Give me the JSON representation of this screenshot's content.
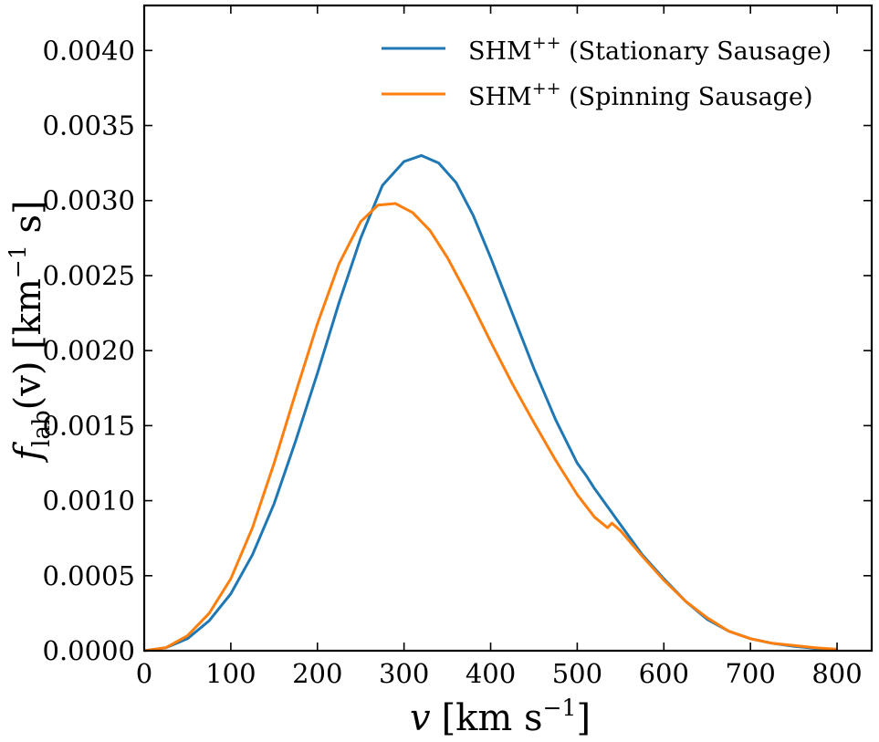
{
  "chart_data": {
    "type": "line",
    "xlabel_main": "v",
    "xlabel_units": "[km s",
    "xlabel_exp": "−1",
    "xlabel_close": "]",
    "ylabel_f": "f",
    "ylabel_sub": "lab",
    "ylabel_arg": "(v) [km",
    "ylabel_exp": "−1",
    "ylabel_close": " s]",
    "xlim": [
      0,
      840
    ],
    "ylim": [
      0,
      0.0043
    ],
    "xticks": [
      0,
      100,
      200,
      300,
      400,
      500,
      600,
      700,
      800
    ],
    "yticks": [
      0.0,
      0.0005,
      0.001,
      0.0015,
      0.002,
      0.0025,
      0.003,
      0.0035,
      0.004
    ],
    "ytick_labels": [
      "0.0000",
      "0.0005",
      "0.0010",
      "0.0015",
      "0.0020",
      "0.0025",
      "0.0030",
      "0.0035",
      "0.0040"
    ],
    "legend_position": "top-right",
    "series": [
      {
        "name": "SHM",
        "name_sup": "++",
        "name_rest": " (Stationary Sausage)",
        "color": "#1f77b4",
        "x": [
          0,
          25,
          50,
          75,
          100,
          125,
          150,
          175,
          200,
          225,
          250,
          275,
          300,
          320,
          340,
          360,
          380,
          400,
          425,
          450,
          475,
          500,
          510,
          520,
          550,
          575,
          600,
          625,
          650,
          675,
          700,
          725,
          750,
          775,
          800
        ],
        "y": [
          0,
          2e-05,
          8e-05,
          0.0002,
          0.00038,
          0.00064,
          0.00098,
          0.0014,
          0.00185,
          0.00232,
          0.00275,
          0.0031,
          0.00326,
          0.0033,
          0.00325,
          0.00312,
          0.0029,
          0.00262,
          0.00225,
          0.00188,
          0.00154,
          0.00125,
          0.00117,
          0.00108,
          0.00084,
          0.00064,
          0.00048,
          0.00033,
          0.00021,
          0.00013,
          8e-05,
          5e-05,
          3e-05,
          1.5e-05,
          5e-06
        ]
      },
      {
        "name": "SHM",
        "name_sup": "++",
        "name_rest": " (Spinning Sausage)",
        "color": "#ff7f0e",
        "x": [
          0,
          25,
          50,
          75,
          100,
          125,
          150,
          175,
          200,
          225,
          250,
          270,
          290,
          310,
          330,
          350,
          375,
          400,
          425,
          450,
          475,
          500,
          520,
          535,
          540,
          550,
          575,
          600,
          625,
          650,
          675,
          700,
          725,
          750,
          775,
          800
        ],
        "y": [
          0,
          2e-05,
          0.0001,
          0.00025,
          0.00048,
          0.00082,
          0.00125,
          0.00172,
          0.00218,
          0.00258,
          0.00286,
          0.00297,
          0.00298,
          0.00292,
          0.0028,
          0.00262,
          0.00235,
          0.00206,
          0.00178,
          0.00152,
          0.00127,
          0.00104,
          0.00089,
          0.00082,
          0.00085,
          0.0008,
          0.00063,
          0.00047,
          0.00033,
          0.00022,
          0.00013,
          8e-05,
          5e-05,
          3.5e-05,
          2e-05,
          1e-05
        ]
      }
    ]
  }
}
